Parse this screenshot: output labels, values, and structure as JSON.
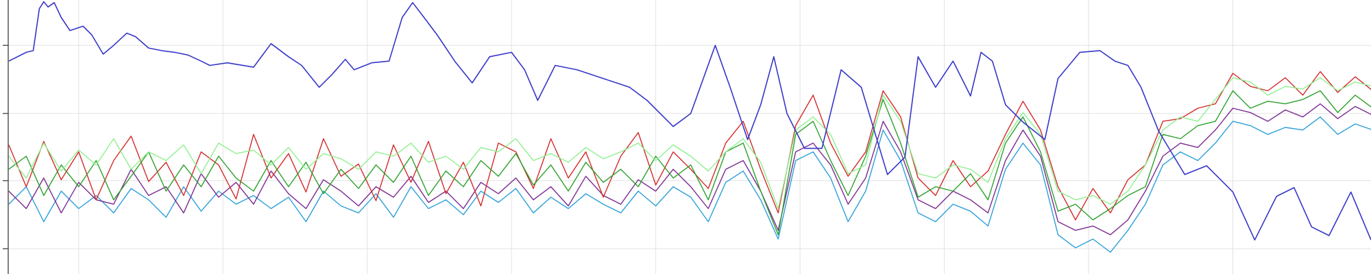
{
  "chart_data": {
    "type": "line",
    "xlim": [
      0,
      1568
    ],
    "ylim": [
      0,
      314
    ],
    "xticks": [
      90,
      255,
      420,
      585,
      750,
      915,
      1080,
      1245,
      1410
    ],
    "yticks": [
      29,
      107,
      184,
      262
    ],
    "grid": true,
    "x": [
      10,
      30,
      50,
      70,
      90,
      110,
      130,
      150,
      170,
      190,
      210,
      230,
      250,
      270,
      290,
      310,
      330,
      350,
      370,
      390,
      410,
      430,
      450,
      470,
      490,
      510,
      530,
      550,
      570,
      590,
      610,
      630,
      650,
      670,
      690,
      710,
      730,
      750,
      770,
      790,
      810,
      830,
      850,
      870,
      890,
      910,
      930,
      950,
      970,
      990,
      1010,
      1030,
      1050,
      1070,
      1090,
      1110,
      1130,
      1150,
      1170,
      1190,
      1210,
      1230,
      1250,
      1270,
      1290,
      1310,
      1330,
      1350,
      1370,
      1390,
      1410,
      1430,
      1450,
      1470,
      1490,
      1510,
      1530,
      1550,
      1570
    ],
    "series": [
      {
        "color": "#2b9fd8",
        "values": [
          80,
          100,
          60,
          95,
          75,
          90,
          70,
          98,
          85,
          65,
          100,
          72,
          95,
          80,
          90,
          75,
          88,
          60,
          95,
          78,
          70,
          92,
          65,
          100,
          75,
          85,
          68,
          95,
          82,
          98,
          70,
          88,
          75,
          92,
          80,
          70,
          95,
          78,
          100,
          88,
          60,
          105,
          118,
          85,
          40,
          130,
          140,
          110,
          60,
          95,
          165,
          130,
          70,
          60,
          80,
          72,
          55,
          120,
          150,
          125,
          45,
          30,
          40,
          25,
          50,
          80,
          125,
          140,
          130,
          150,
          175,
          170,
          160,
          168,
          165,
          180,
          160,
          172,
          165
        ]
      },
      {
        "color": "#7a2a90",
        "values": [
          95,
          75,
          110,
          70,
          105,
          85,
          80,
          120,
          90,
          100,
          70,
          115,
          88,
          105,
          80,
          118,
          92,
          75,
          108,
          95,
          78,
          100,
          88,
          112,
          82,
          95,
          75,
          105,
          92,
          110,
          85,
          100,
          78,
          112,
          90,
          80,
          108,
          95,
          120,
          100,
          75,
          120,
          130,
          95,
          50,
          140,
          150,
          125,
          80,
          110,
          175,
          140,
          85,
          75,
          95,
          85,
          70,
          130,
          165,
          135,
          60,
          50,
          55,
          45,
          62,
          95,
          135,
          150,
          145,
          165,
          190,
          185,
          175,
          188,
          180,
          195,
          178,
          192,
          182
        ]
      },
      {
        "color": "#d42a2a",
        "values": [
          148,
          100,
          152,
          108,
          140,
          85,
          130,
          158,
          106,
          128,
          90,
          140,
          125,
          86,
          160,
          110,
          138,
          94,
          155,
          112,
          126,
          84,
          148,
          105,
          152,
          92,
          128,
          78,
          150,
          140,
          98,
          155,
          110,
          140,
          88,
          135,
          162,
          102,
          140,
          120,
          98,
          150,
          175,
          120,
          70,
          170,
          205,
          150,
          112,
          140,
          210,
          180,
          110,
          90,
          130,
          100,
          118,
          160,
          198,
          165,
          100,
          62,
          98,
          70,
          108,
          125,
          175,
          178,
          190,
          195,
          230,
          215,
          210,
          225,
          205,
          232,
          208,
          226,
          210
        ]
      },
      {
        "color": "#2ca02c",
        "values": [
          120,
          135,
          90,
          125,
          100,
          130,
          85,
          112,
          140,
          95,
          125,
          100,
          135,
          110,
          95,
          130,
          100,
          128,
          92,
          120,
          98,
          125,
          105,
          135,
          90,
          118,
          100,
          130,
          112,
          138,
          102,
          125,
          95,
          128,
          105,
          120,
          100,
          135,
          110,
          125,
          85,
          140,
          150,
          95,
          45,
          160,
          175,
          130,
          90,
          135,
          200,
          150,
          88,
          100,
          95,
          115,
          85,
          150,
          180,
          140,
          72,
          80,
          62,
          75,
          90,
          100,
          160,
          155,
          170,
          175,
          210,
          190,
          198,
          195,
          200,
          210,
          185,
          205,
          190
        ]
      },
      {
        "color": "#8ef08e",
        "values": [
          135,
          110,
          150,
          118,
          142,
          125,
          155,
          120,
          140,
          130,
          148,
          115,
          150,
          138,
          142,
          125,
          145,
          120,
          138,
          132,
          120,
          140,
          135,
          150,
          128,
          135,
          120,
          145,
          140,
          155,
          130,
          138,
          128,
          145,
          132,
          140,
          150,
          130,
          148,
          135,
          118,
          140,
          155,
          128,
          75,
          165,
          180,
          160,
          115,
          125,
          205,
          175,
          115,
          110,
          125,
          120,
          105,
          155,
          185,
          160,
          95,
          85,
          90,
          80,
          95,
          125,
          165,
          180,
          175,
          200,
          225,
          220,
          205,
          215,
          212,
          225,
          210,
          220,
          215
        ]
      },
      {
        "color": "#3535c8",
        "x": [
          10,
          30,
          38,
          45,
          50,
          55,
          62,
          70,
          80,
          95,
          105,
          118,
          130,
          145,
          155,
          170,
          185,
          200,
          215,
          230,
          240,
          260,
          290,
          310,
          330,
          345,
          365,
          380,
          395,
          405,
          425,
          445,
          460,
          472,
          485,
          500,
          520,
          540,
          560,
          585,
          600,
          615,
          635,
          660,
          690,
          720,
          740,
          770,
          790,
          818,
          835,
          855,
          870,
          885,
          900,
          920,
          940,
          962,
          985,
          1000,
          1015,
          1035,
          1050,
          1070,
          1090,
          1110,
          1122,
          1135,
          1150,
          1170,
          1195,
          1210,
          1235,
          1258,
          1275,
          1290,
          1305,
          1325,
          1355,
          1380,
          1410,
          1435,
          1460,
          1480,
          1500,
          1520,
          1545,
          1568
        ],
        "values": [
          244,
          254,
          256,
          304,
          312,
          306,
          311,
          294,
          279,
          284,
          274,
          252,
          262,
          276,
          272,
          259,
          256,
          254,
          251,
          244,
          239,
          242,
          237,
          264,
          249,
          239,
          214,
          229,
          246,
          234,
          242,
          244,
          294,
          311,
          294,
          274,
          244,
          219,
          249,
          254,
          234,
          199,
          239,
          234,
          224,
          214,
          199,
          169,
          184,
          262,
          214,
          154,
          194,
          249,
          184,
          144,
          144,
          234,
          214,
          164,
          114,
          134,
          249,
          214,
          244,
          204,
          254,
          244,
          194,
          174,
          154,
          224,
          254,
          256,
          244,
          239,
          214,
          164,
          114,
          124,
          94,
          39,
          89,
          99,
          54,
          44,
          94,
          39
        ]
      }
    ]
  }
}
